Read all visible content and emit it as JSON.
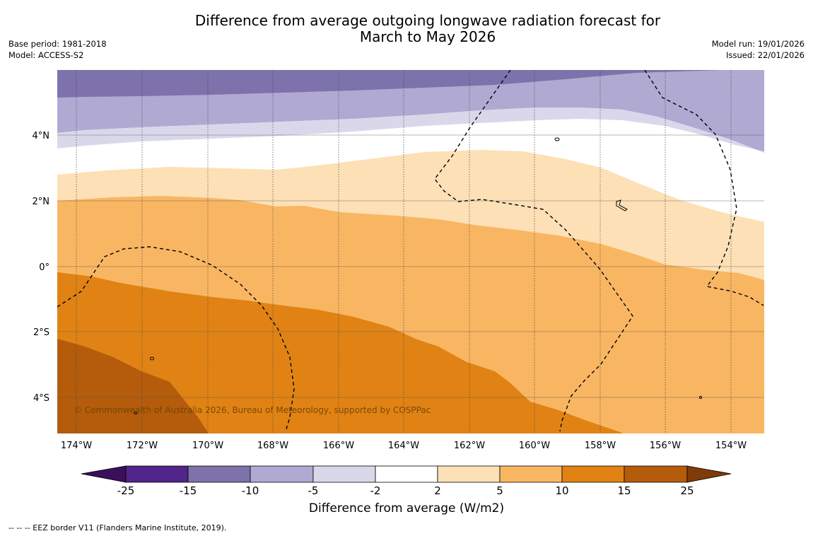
{
  "title": {
    "line1": "Difference from average outgoing longwave radiation forecast for",
    "line2": "March to May 2026"
  },
  "meta_left": {
    "base_period": "Base period: 1981-2018",
    "model": "Model: ACCESS-S2"
  },
  "meta_right": {
    "model_run": "Model run: 19/01/2026",
    "issued": "Issued: 22/01/2026"
  },
  "map": {
    "copyright": "© Commonwealth of Australia 2026, Bureau of Meteorology, supported by COSPPac",
    "lon_labels": [
      "174°W",
      "172°W",
      "170°W",
      "168°W",
      "166°W",
      "164°W",
      "162°W",
      "160°W",
      "158°W",
      "156°W",
      "154°W"
    ],
    "lat_labels": [
      "4°N",
      "2°N",
      "0°",
      "2°S",
      "4°S"
    ],
    "lon_range_deg": [
      -174.6,
      -153.0
    ],
    "lat_range_deg": [
      -5.2,
      6.0
    ]
  },
  "colorbar": {
    "ticks": [
      "-25",
      "-15",
      "-10",
      "-5",
      "-2",
      "2",
      "5",
      "10",
      "15",
      "25"
    ],
    "colors": {
      "below_-25": "#3a0f5c",
      "-25_-15": "#52258a",
      "-15_-10": "#7d72ab",
      "-10_-5": "#b0a9d2",
      "-5_-2": "#d9d8eb",
      "-2_2": "#ffffff",
      "2_5": "#fde0b6",
      "5_10": "#f9b662",
      "10_15": "#e08314",
      "15_25": "#b45c0c",
      "above_25": "#7f3b08"
    },
    "label": "Difference from average (W/m2)"
  },
  "footnote": "--  --  -- EEZ border V11 (Flanders Marine Institute, 2019)."
}
